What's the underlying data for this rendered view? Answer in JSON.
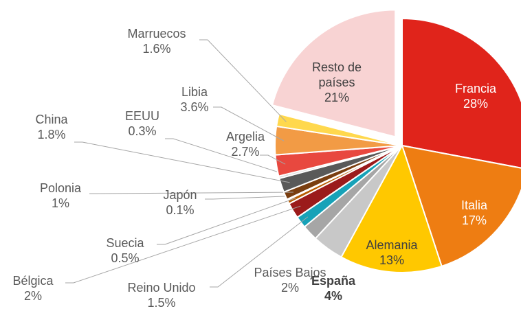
{
  "chart_data": {
    "type": "pie",
    "categories": [
      "Francia",
      "Italia",
      "Alemania",
      "España",
      "Países Bajos",
      "Reino Unido",
      "Bélgica",
      "Suecia",
      "Japón",
      "Polonia",
      "China",
      "EEUU",
      "Argelia",
      "Libia",
      "Marruecos",
      "Resto de países"
    ],
    "values": [
      28,
      17,
      13,
      4,
      2,
      1.5,
      2,
      0.5,
      0.1,
      1,
      1.8,
      0.3,
      2.7,
      3.6,
      1.6,
      21
    ],
    "value_labels": [
      "28%",
      "17%",
      "13%",
      "4%",
      "2%",
      "1.5%",
      "2%",
      "0.5%",
      "0.1%",
      "1%",
      "1.8%",
      "0.3%",
      "2.7%",
      "3.6%",
      "1.6%",
      "21%"
    ],
    "colors": [
      "#e0241b",
      "#ee7d12",
      "#ffc800",
      "#c8c8c8",
      "#a6a6a6",
      "#17a2b8",
      "#9b1b1b",
      "#b85c00",
      "#f2c94c",
      "#7a3e10",
      "#595959",
      "#d9d9d9",
      "#e8483f",
      "#f29b45",
      "#ffd84d",
      "#f8d3d3"
    ]
  }
}
